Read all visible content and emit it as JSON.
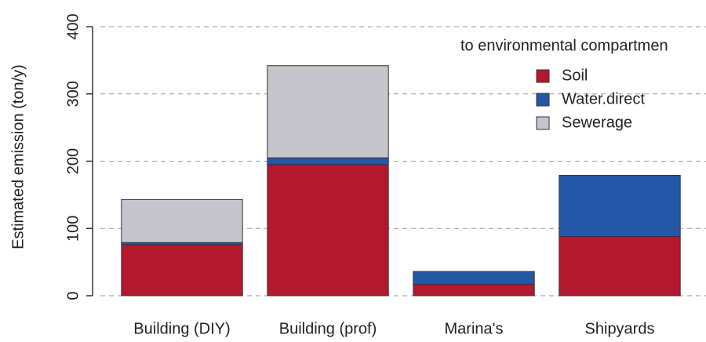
{
  "chart_data": {
    "type": "bar",
    "stacked": true,
    "y_label": "Estimated emission (ton/y)",
    "legend_title": "to environmental compartmen",
    "categories": [
      "Building (DIY)",
      "Building (prof)",
      "Marina's",
      "Shipyards"
    ],
    "series": [
      {
        "name": "Soil",
        "color": "#b3182e",
        "values": [
          76,
          195,
          17,
          88
        ]
      },
      {
        "name": "Water.direct",
        "color": "#2557a8",
        "values": [
          3,
          10,
          19,
          91
        ]
      },
      {
        "name": "Sewerage",
        "color": "#c5c5cb",
        "values": [
          64,
          137,
          0,
          0
        ]
      }
    ],
    "ylim": [
      0,
      400
    ],
    "yticks": [
      0,
      100,
      200,
      300,
      400
    ],
    "grid": true
  }
}
